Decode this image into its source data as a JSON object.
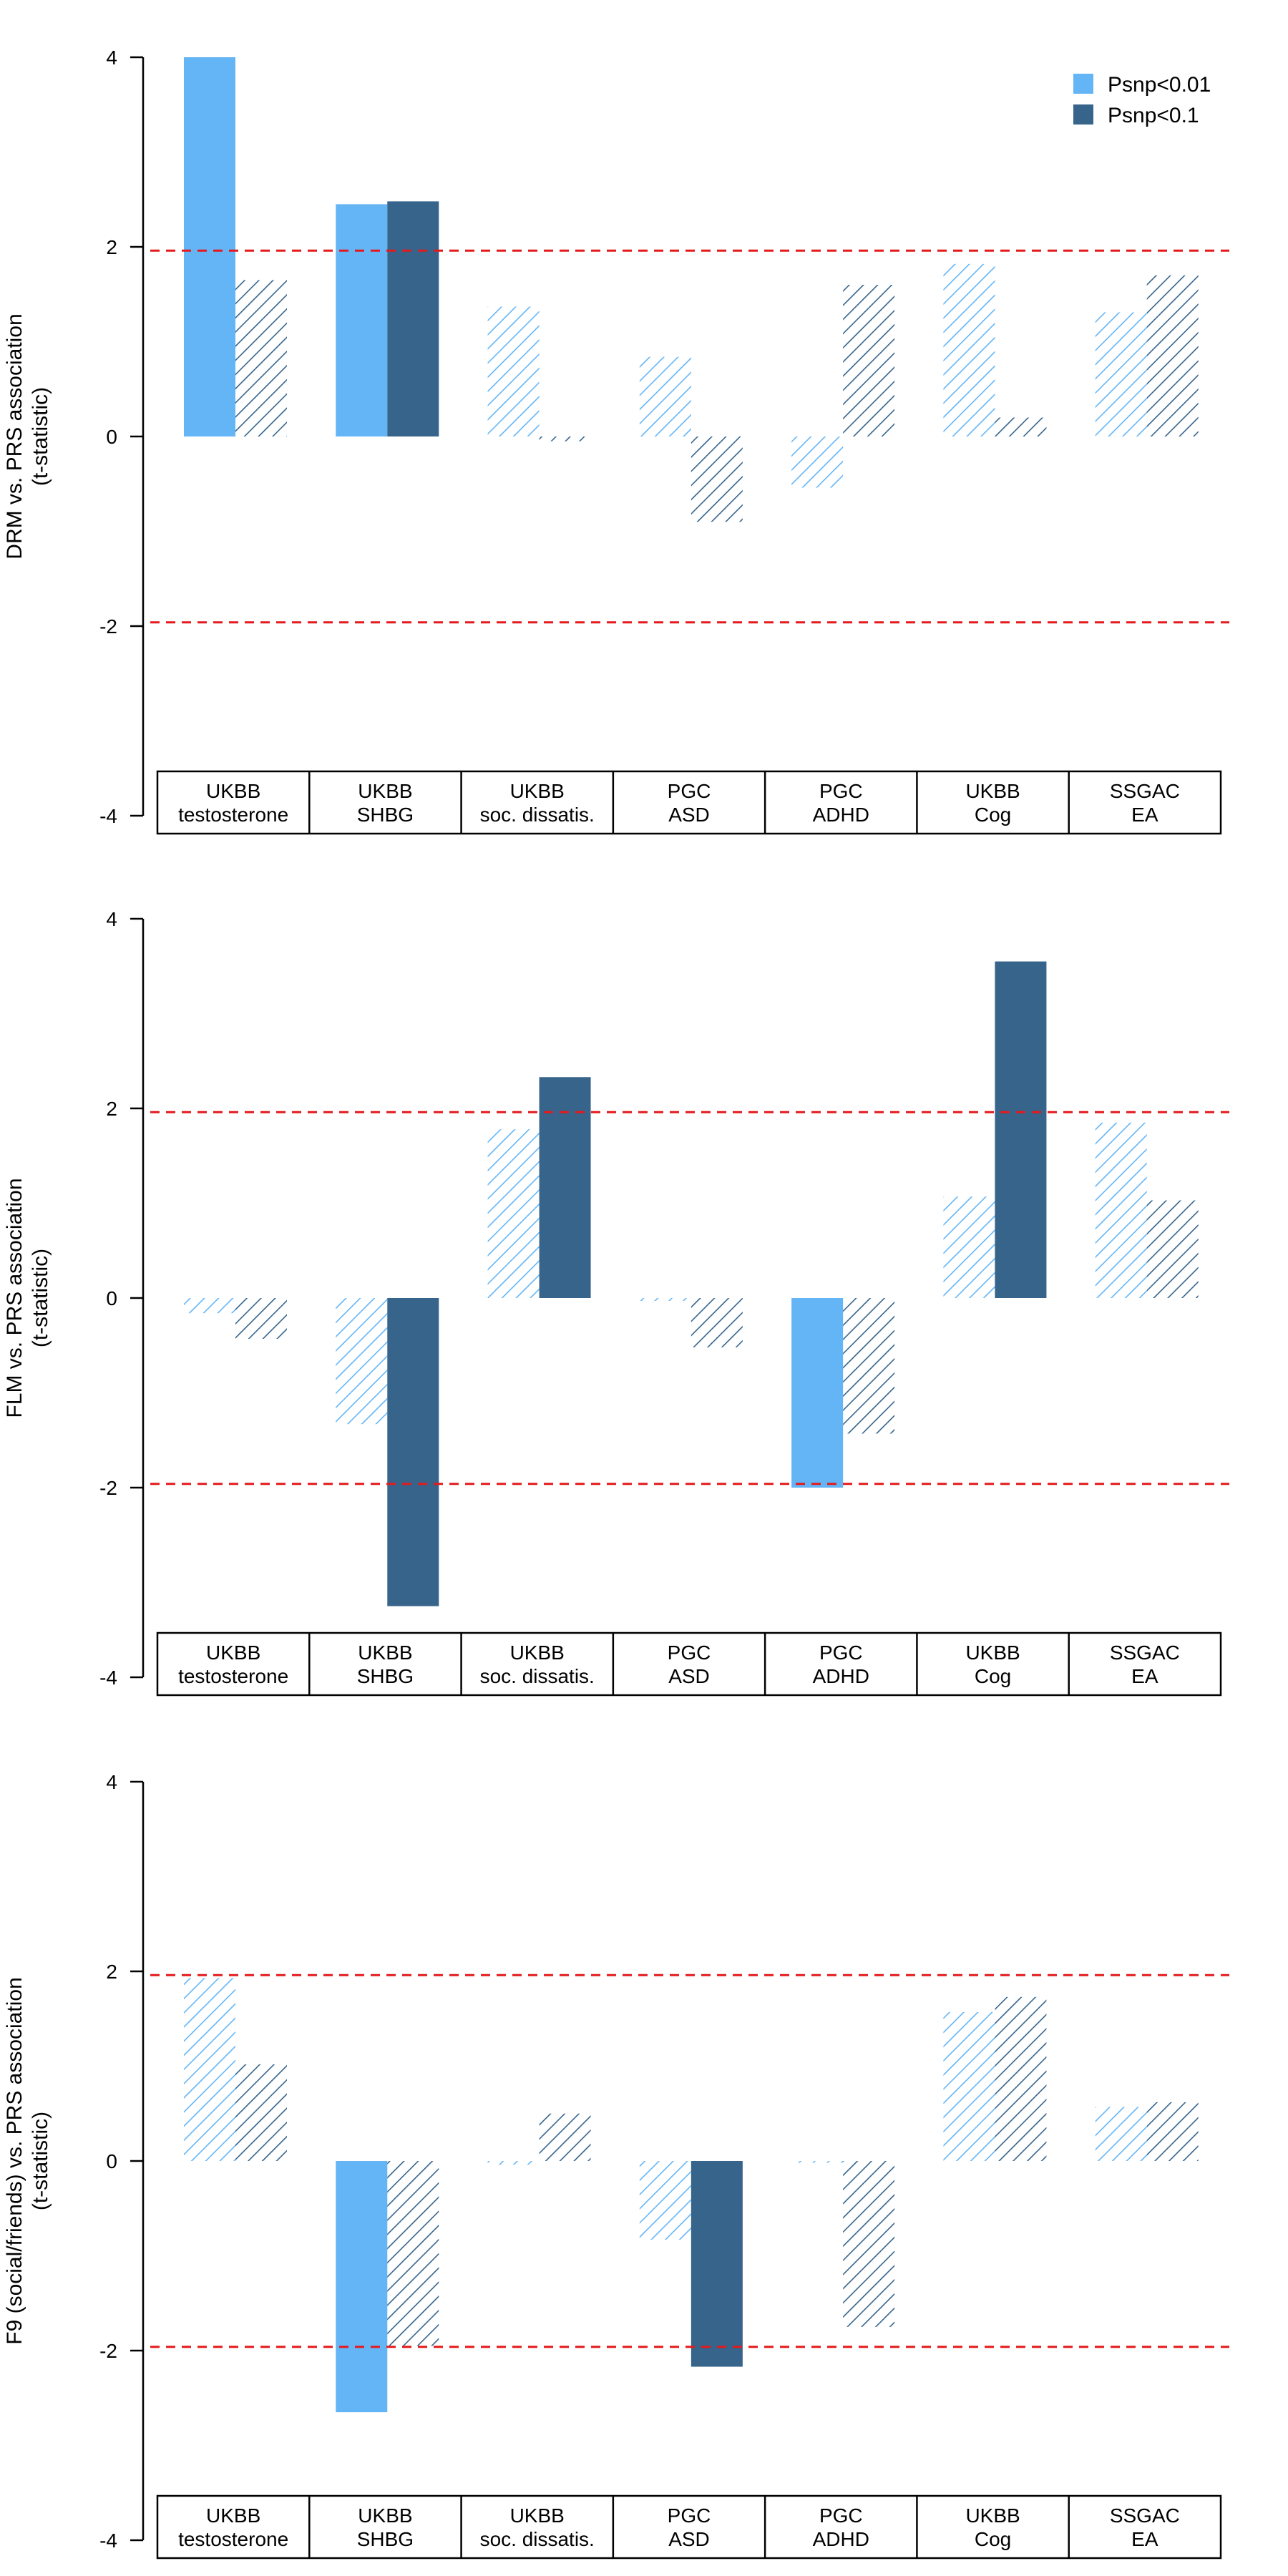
{
  "colors": {
    "light": "#64b5f6",
    "dark": "#36648b",
    "threshold": "#e41a1c"
  },
  "legend": [
    {
      "label": "Psnp<0.01",
      "color": "#64b5f6"
    },
    {
      "label": "Psnp<0.1",
      "color": "#36648b"
    }
  ],
  "chart_data": [
    {
      "type": "bar",
      "ylabel_line1": "DRM vs. PRS association",
      "ylabel_line2": "(t-statistic)",
      "ylim": [
        -4,
        4
      ],
      "yticks": [
        "4",
        "2",
        "0",
        "-2",
        "-4"
      ],
      "threshold": 1.96,
      "category_lines": [
        [
          "UKBB",
          "testosterone"
        ],
        [
          "UKBB",
          "SHBG"
        ],
        [
          "UKBB",
          "soc. dissatis."
        ],
        [
          "PGC",
          "ASD"
        ],
        [
          "PGC",
          "ADHD"
        ],
        [
          "UKBB",
          "Cog"
        ],
        [
          "SSGAC",
          "EA"
        ]
      ],
      "series": [
        {
          "name": "Psnp<0.01",
          "values": [
            4.0,
            2.45,
            1.37,
            0.84,
            -0.54,
            1.82,
            1.31
          ],
          "significant": [
            true,
            true,
            false,
            false,
            false,
            false,
            false
          ]
        },
        {
          "name": "Psnp<0.1",
          "values": [
            1.65,
            2.48,
            -0.05,
            -0.9,
            1.6,
            0.2,
            1.7
          ],
          "significant": [
            false,
            true,
            false,
            false,
            false,
            false,
            false
          ]
        }
      ]
    },
    {
      "type": "bar",
      "ylabel_line1": "FLM vs. PRS association",
      "ylabel_line2": "(t-statistic)",
      "ylim": [
        -4,
        4
      ],
      "yticks": [
        "4",
        "2",
        "0",
        "-2",
        "-4"
      ],
      "threshold": 1.96,
      "category_lines": [
        [
          "UKBB",
          "testosterone"
        ],
        [
          "UKBB",
          "SHBG"
        ],
        [
          "UKBB",
          "soc. dissatis."
        ],
        [
          "PGC",
          "ASD"
        ],
        [
          "PGC",
          "ADHD"
        ],
        [
          "UKBB",
          "Cog"
        ],
        [
          "SSGAC",
          "EA"
        ]
      ],
      "series": [
        {
          "name": "Psnp<0.01",
          "values": [
            -0.16,
            -1.33,
            1.78,
            -0.03,
            -2.0,
            1.07,
            1.85
          ],
          "significant": [
            false,
            false,
            false,
            false,
            true,
            false,
            false
          ]
        },
        {
          "name": "Psnp<0.1",
          "values": [
            -0.43,
            -3.25,
            2.33,
            -0.52,
            -1.43,
            3.55,
            1.03
          ],
          "significant": [
            false,
            true,
            true,
            false,
            false,
            true,
            false
          ]
        }
      ]
    },
    {
      "type": "bar",
      "ylabel_line1": "F9 (social/friends) vs. PRS association",
      "ylabel_line2": "(t-statistic)",
      "ylim": [
        -4,
        4
      ],
      "yticks": [
        "4",
        "2",
        "0",
        "-2",
        "-4"
      ],
      "threshold": 1.96,
      "category_lines": [
        [
          "UKBB",
          "testosterone"
        ],
        [
          "UKBB",
          "SHBG"
        ],
        [
          "UKBB",
          "soc. dissatis."
        ],
        [
          "PGC",
          "ASD"
        ],
        [
          "PGC",
          "ADHD"
        ],
        [
          "UKBB",
          "Cog"
        ],
        [
          "SSGAC",
          "EA"
        ]
      ],
      "series": [
        {
          "name": "Psnp<0.01",
          "values": [
            1.93,
            -2.65,
            -0.04,
            -0.83,
            -0.02,
            1.57,
            0.57
          ],
          "significant": [
            false,
            true,
            false,
            false,
            false,
            false,
            false
          ]
        },
        {
          "name": "Psnp<0.1",
          "values": [
            1.02,
            -1.95,
            0.5,
            -2.17,
            -1.75,
            1.73,
            0.62
          ],
          "significant": [
            false,
            false,
            false,
            true,
            false,
            false,
            false
          ]
        }
      ]
    }
  ]
}
